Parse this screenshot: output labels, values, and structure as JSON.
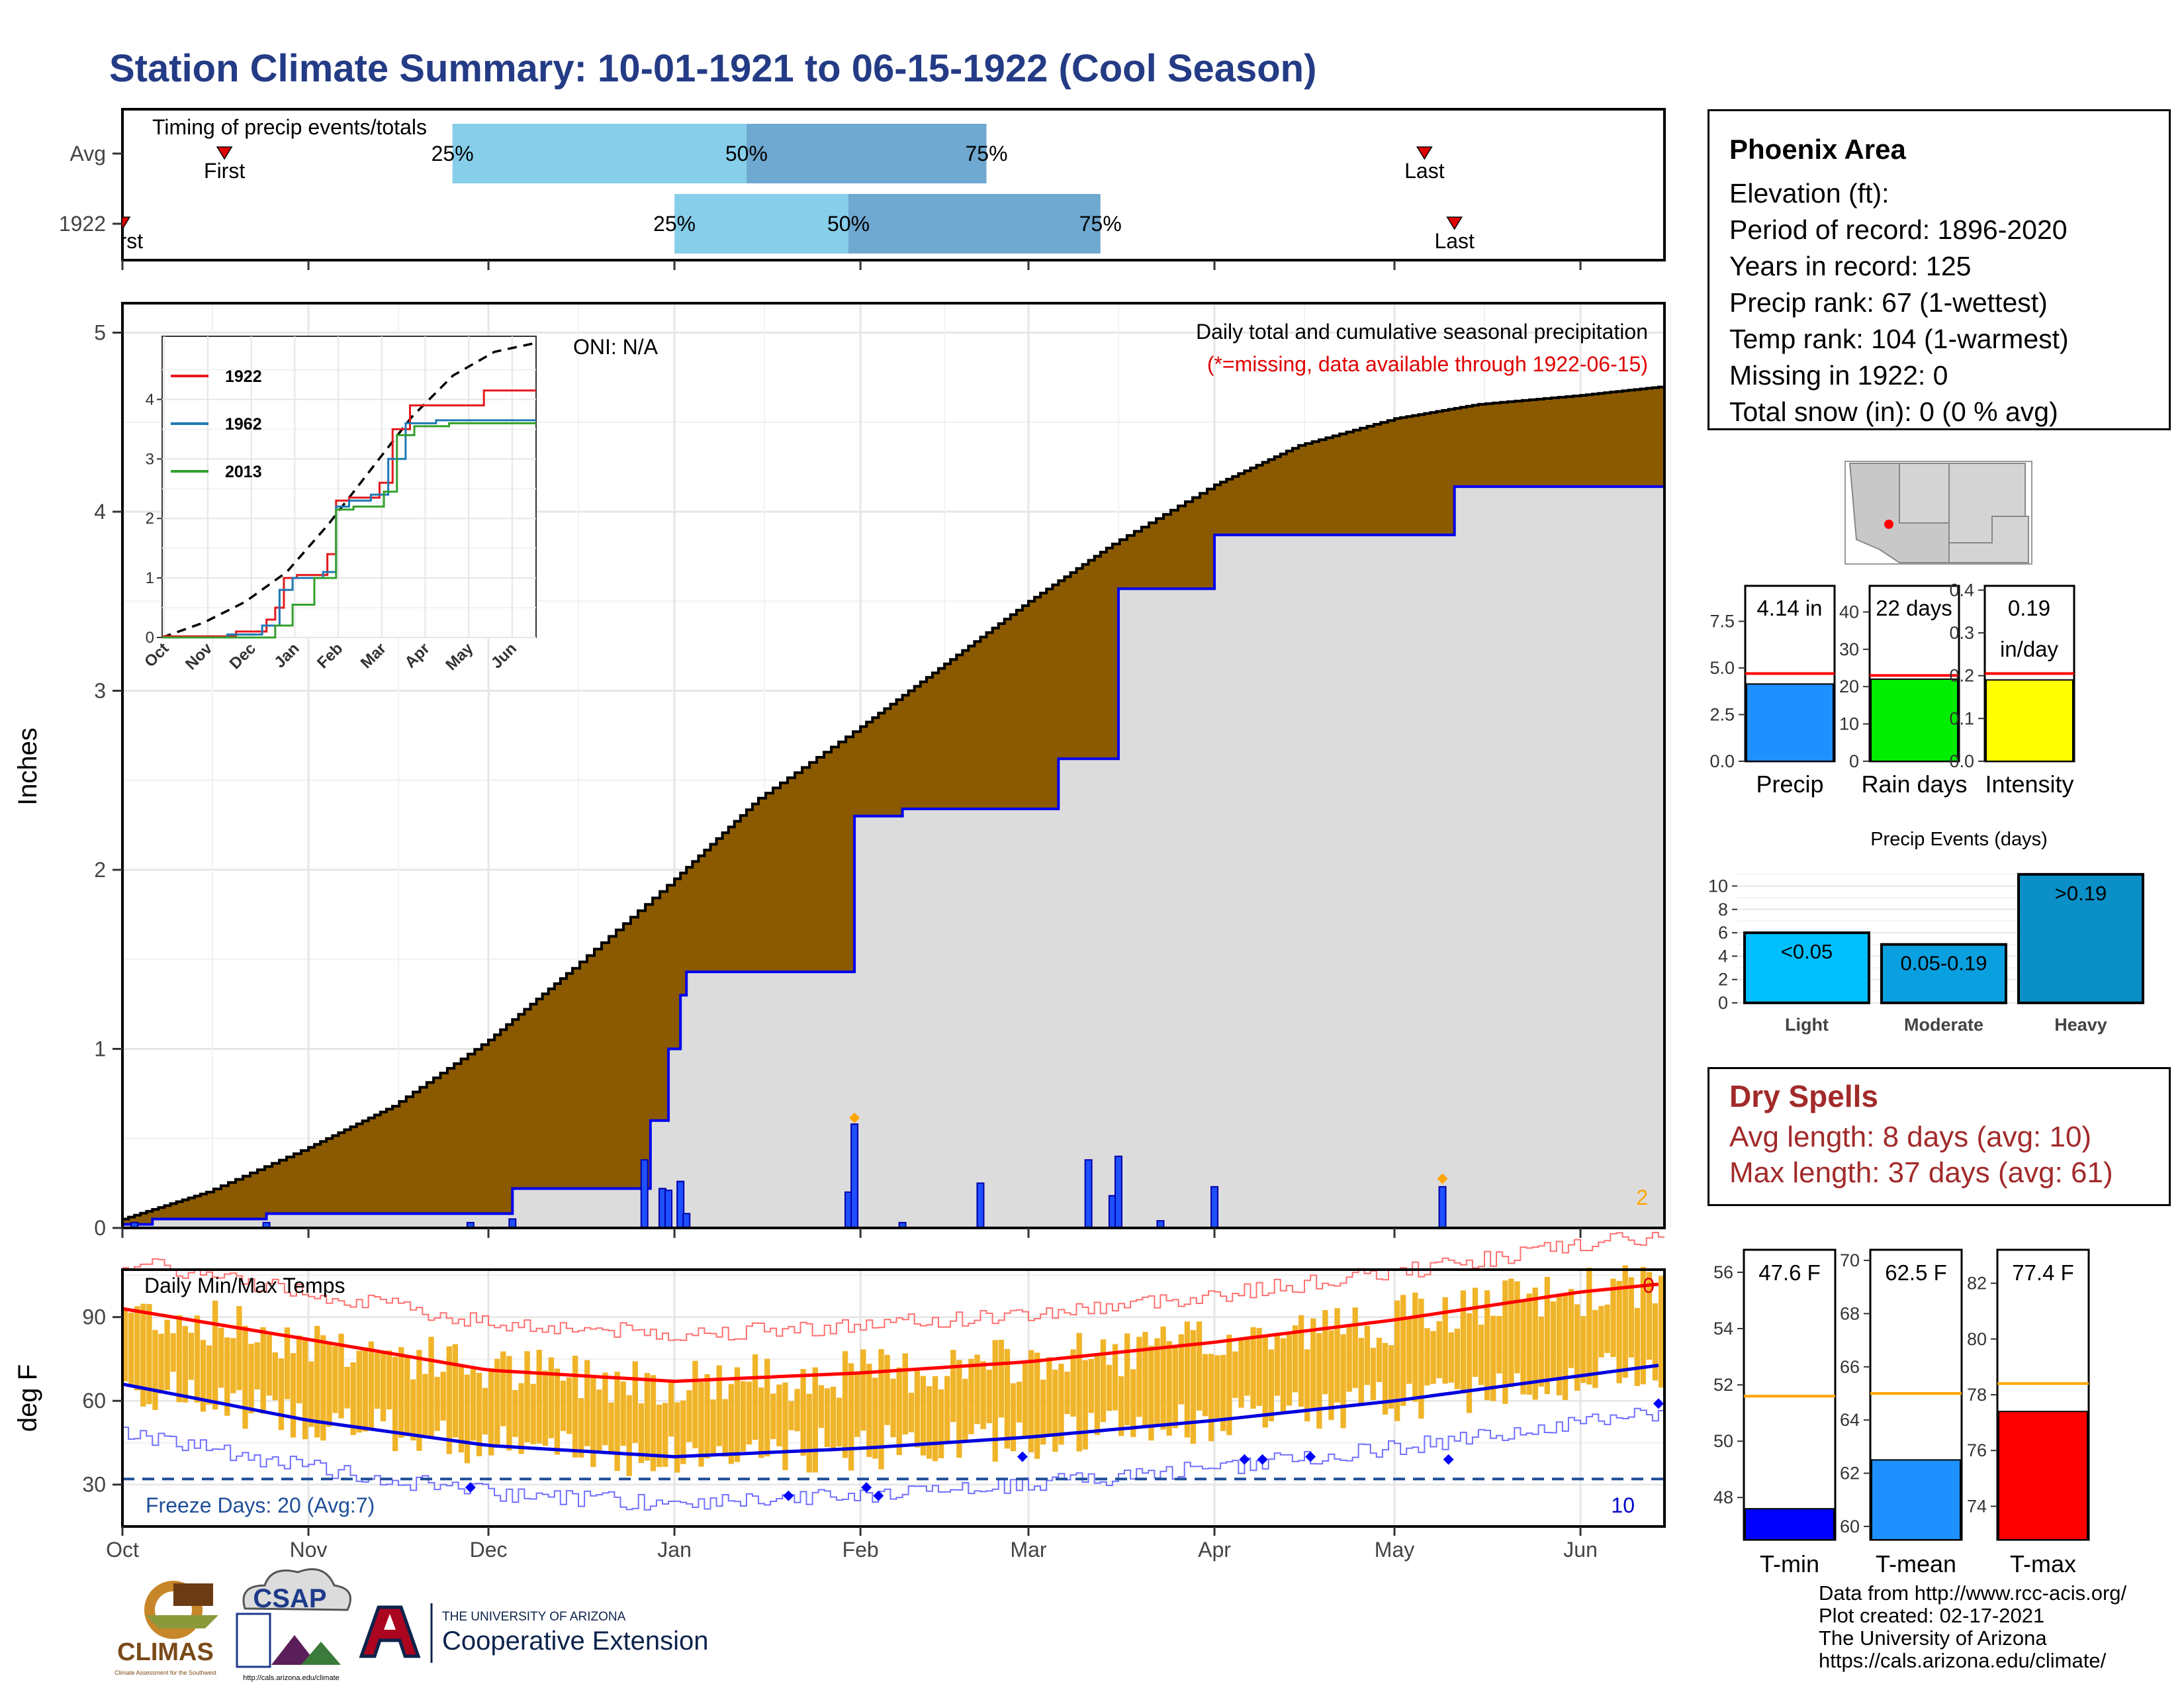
{
  "title": "Station Climate Summary: 10-01-1921 to 06-15-1922 (Cool Season)",
  "timing": {
    "label": "Timing of precip events/totals",
    "rows": [
      {
        "name": "Avg",
        "q25": "11-25",
        "q50": "01-13",
        "q75": "02-22",
        "first": "10-18",
        "last": "05-06",
        "first_label": "First",
        "last_label": "Last"
      },
      {
        "name": "1922",
        "q25": "01-01",
        "q50": "01-30",
        "q75": "03-13",
        "first": "10-01",
        "last": "05-11",
        "first_label": "First",
        "last_label": "Last"
      }
    ],
    "pct_labels": [
      "25%",
      "50%",
      "75%"
    ]
  },
  "precip_panel": {
    "ylabel": "Inches",
    "subtitle": "Daily total and cumulative seasonal precipitation",
    "missing_note": "(*=missing, data available through 1922-06-15)",
    "oni": "ONI: N/A",
    "corner_count": "2",
    "y_ticks": [
      "0",
      "1",
      "2",
      "3",
      "4",
      "5"
    ]
  },
  "temp_panel": {
    "ylabel": "deg F",
    "label": "Daily Min/Max Temps",
    "freeze_text": "Freeze Days: 20 (Avg:7)",
    "count_hot": "0",
    "count_cold": "10",
    "y_ticks": [
      "30",
      "60",
      "90"
    ]
  },
  "x_months": [
    "Oct",
    "Nov",
    "Dec",
    "Jan",
    "Feb",
    "Mar",
    "Apr",
    "May",
    "Jun"
  ],
  "inset": {
    "months": [
      "Oct",
      "Nov",
      "Dec",
      "Jan",
      "Feb",
      "Mar",
      "Apr",
      "May",
      "Jun"
    ],
    "y_ticks": [
      "0",
      "1",
      "2",
      "3",
      "4"
    ],
    "legend": [
      {
        "name": "1922",
        "color": "#e31a1c"
      },
      {
        "name": "1962",
        "color": "#1f78b4"
      },
      {
        "name": "2013",
        "color": "#33a02c"
      }
    ]
  },
  "station": {
    "name": "Phoenix Area",
    "lines": [
      "Elevation (ft):",
      "Period of record: 1896-2020",
      "Years in record: 125",
      "Precip rank: 67 (1-wettest)",
      "Temp rank: 104 (1-warmest)",
      "Missing in 1922: 0",
      "Total snow (in): 0 (0 % avg)"
    ]
  },
  "summary_bars": [
    {
      "label": "Precip",
      "value_text": "4.14 in",
      "value": 4.14,
      "avg": 4.7,
      "ymax": 9.4,
      "ticks": [
        "0.0",
        "2.5",
        "5.0",
        "7.5"
      ],
      "color": "#1e90ff"
    },
    {
      "label": "Rain days",
      "value_text": "22 days",
      "value": 22,
      "avg": 23,
      "ymax": 47,
      "ticks": [
        "0",
        "10",
        "20",
        "30",
        "40"
      ],
      "color": "#00ee00"
    },
    {
      "label": "Intensity",
      "value_text": "0.19",
      "value_text2": "in/day",
      "value": 0.19,
      "avg": 0.205,
      "ymax": 0.41,
      "ticks": [
        "0.0",
        "0.1",
        "0.2",
        "0.3",
        "0.4"
      ],
      "color": "#ffff00"
    }
  ],
  "events": {
    "title": "Precip Events (days)",
    "ticks": [
      "0",
      "2",
      "4",
      "6",
      "8",
      "10"
    ],
    "bars": [
      {
        "name": "Light",
        "label": "<0.05",
        "value": 6,
        "color": "#00bfff"
      },
      {
        "name": "Moderate",
        "label": "0.05-0.19",
        "value": 5,
        "color": "#0aa0e0"
      },
      {
        "name": "Heavy",
        "label": ">0.19",
        "value": 11,
        "color": "#0a8fc7"
      }
    ]
  },
  "dry_spells": {
    "title": "Dry Spells",
    "avg": "Avg length: 8 days (avg: 10)",
    "max": "Max length: 37 days (avg: 61)"
  },
  "temp_bars": [
    {
      "label": "T-min",
      "value_text": "47.6 F",
      "value": 47.6,
      "avg": 51.6,
      "ymin": 46.5,
      "ymax": 56.8,
      "ticks": [
        "48",
        "50",
        "52",
        "54",
        "56"
      ],
      "color": "#0000ff"
    },
    {
      "label": "T-mean",
      "value_text": "62.5 F",
      "value": 62.5,
      "avg": 65.0,
      "ymin": 59.5,
      "ymax": 70.4,
      "ticks": [
        "60",
        "62",
        "64",
        "66",
        "68",
        "70"
      ],
      "color": "#1e90ff"
    },
    {
      "label": "T-max",
      "value_text": "77.4 F",
      "value": 77.4,
      "avg": 78.4,
      "ymin": 72.8,
      "ymax": 83.2,
      "ticks": [
        "74",
        "76",
        "78",
        "80",
        "82"
      ],
      "color": "#ff0000"
    }
  ],
  "logos": {
    "climas": "CLIMAS",
    "climas_sub": "Climate Assessment for the Southwest",
    "csap": "CSAP",
    "csap_sub": "http://cals.arizona.edu/climate",
    "ua_small": "THE UNIVERSITY OF ARIZONA",
    "ua_big": "Cooperative Extension"
  },
  "credits": [
    "Data from http://www.rcc-acis.org/",
    "Plot created: 02-17-2021",
    "The University of Arizona",
    "https://cals.arizona.edu/climate/"
  ],
  "chart_data": {
    "type": "area",
    "title": "Daily total and cumulative seasonal precipitation",
    "ylabel": "Inches",
    "ylim": [
      0,
      5
    ],
    "x_range": [
      "1921-10-01",
      "1922-06-15"
    ],
    "series": [
      {
        "name": "Cumulative precip",
        "x": [
          "1921-10-01",
          "1921-10-15",
          "1921-11-01",
          "1921-11-15",
          "1921-12-01",
          "1921-12-15",
          "1922-01-01",
          "1922-01-15",
          "1922-02-01",
          "1922-02-15",
          "1922-03-01",
          "1922-03-15",
          "1922-04-01",
          "1922-04-15",
          "1922-05-01",
          "1922-05-15",
          "1922-06-01",
          "1922-06-15"
        ],
        "values": [
          0.05,
          0.2,
          0.45,
          0.68,
          1.05,
          1.45,
          1.95,
          2.4,
          2.8,
          3.15,
          3.5,
          3.82,
          4.15,
          4.37,
          4.52,
          4.6,
          4.65,
          4.7
        ]
      },
      {
        "name": "1922 cumulative",
        "x": [
          "1921-10-01",
          "1921-10-06",
          "1921-10-25",
          "1921-12-05",
          "1921-12-27",
          "1921-12-28",
          "1921-12-31",
          "1922-01-02",
          "1922-01-03",
          "1922-01-30",
          "1922-01-31",
          "1922-02-08",
          "1922-03-06",
          "1922-03-15",
          "1922-03-16",
          "1922-04-01",
          "1922-05-11",
          "1922-06-15"
        ],
        "values": [
          0.02,
          0.05,
          0.08,
          0.22,
          0.22,
          0.6,
          1.0,
          1.3,
          1.43,
          1.43,
          2.3,
          2.34,
          2.62,
          2.62,
          3.57,
          3.87,
          4.14,
          4.14
        ]
      },
      {
        "name": "Daily precip",
        "x": [
          "1921-10-03",
          "1921-10-25",
          "1921-11-28",
          "1921-12-05",
          "1921-12-27",
          "1921-12-30",
          "1921-12-31",
          "1922-01-02",
          "1922-01-03",
          "1922-01-30",
          "1922-01-31",
          "1922-02-08",
          "1922-02-21",
          "1922-03-11",
          "1922-03-15",
          "1922-03-16",
          "1922-03-23",
          "1922-04-01",
          "1922-05-09"
        ],
        "values": [
          0.03,
          0.03,
          0.03,
          0.05,
          0.38,
          0.22,
          0.21,
          0.26,
          0.08,
          0.2,
          0.58,
          0.03,
          0.25,
          0.38,
          0.18,
          0.4,
          0.04,
          0.23,
          0.23
        ]
      }
    ],
    "temps": {
      "ylabel": "deg F",
      "x_range": [
        "1921-10-01",
        "1922-06-15"
      ],
      "normal_max": {
        "x": [
          "10-01",
          "11-01",
          "12-01",
          "01-01",
          "02-01",
          "03-01",
          "04-01",
          "05-01",
          "06-01",
          "06-15"
        ],
        "values": [
          93,
          82,
          71,
          67,
          70,
          74,
          81,
          89,
          99,
          102
        ]
      },
      "normal_min": {
        "x": [
          "10-01",
          "11-01",
          "12-01",
          "01-01",
          "02-01",
          "03-01",
          "04-01",
          "05-01",
          "06-01",
          "06-15"
        ],
        "values": [
          66,
          53,
          44,
          40,
          43,
          47,
          53,
          60,
          69,
          73
        ]
      },
      "freeze_line": 32
    }
  }
}
